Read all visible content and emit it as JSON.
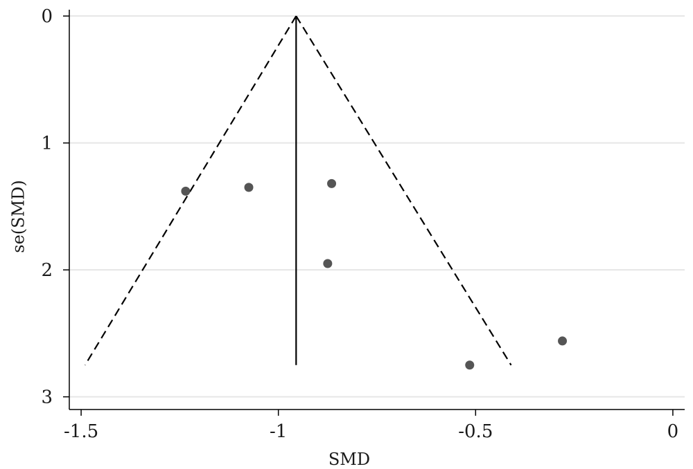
{
  "chart_data": {
    "type": "scatter",
    "title": "",
    "xlabel": "SMD",
    "ylabel": "se(SMD)",
    "xlim": [
      -1.53,
      0.03
    ],
    "ylim": [
      3.1,
      -0.05
    ],
    "y_reversed": true,
    "grid": "horizontal",
    "x_ticks": [
      {
        "value": -1.5,
        "label": "-1.5"
      },
      {
        "value": -1,
        "label": "-1"
      },
      {
        "value": -0.5,
        "label": "-0.5"
      },
      {
        "value": 0,
        "label": "0"
      }
    ],
    "y_ticks": [
      {
        "value": 0,
        "label": "0"
      },
      {
        "value": 1,
        "label": "1"
      },
      {
        "value": 2,
        "label": "2"
      },
      {
        "value": 3,
        "label": "3"
      }
    ],
    "points": [
      {
        "x": -1.235,
        "y": 1.38
      },
      {
        "x": -1.075,
        "y": 1.35
      },
      {
        "x": -0.865,
        "y": 1.32
      },
      {
        "x": -0.875,
        "y": 1.95
      },
      {
        "x": -0.515,
        "y": 2.75
      },
      {
        "x": -0.28,
        "y": 2.56
      }
    ],
    "pooled_estimate": -0.955,
    "funnel": {
      "apex": {
        "x": -0.955,
        "y": 0
      },
      "left_base": {
        "x": -1.49,
        "y": 2.75
      },
      "right_base": {
        "x": -0.41,
        "y": 2.75
      }
    },
    "colors": {
      "points": "#555555",
      "lines": "#000000",
      "grid": "#e6e6e6",
      "axis": "#000000"
    }
  }
}
